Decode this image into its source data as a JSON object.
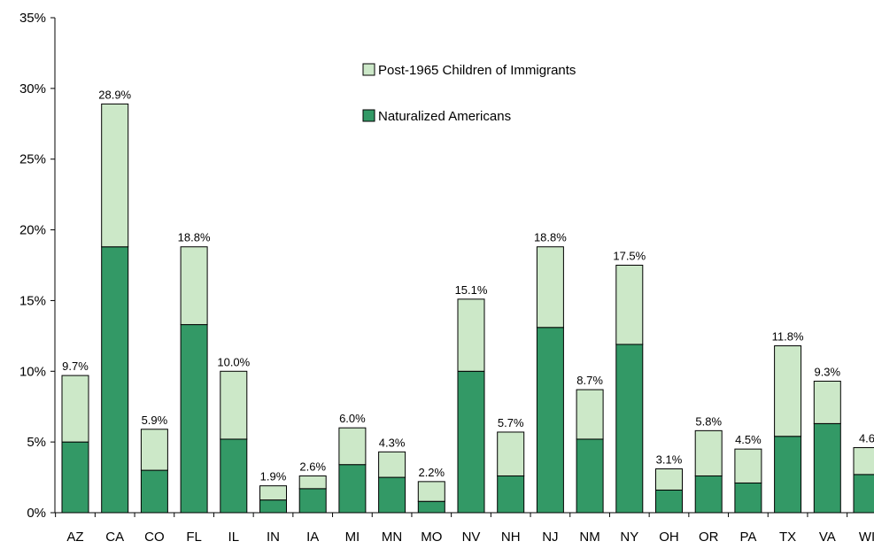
{
  "chart_data": {
    "type": "bar",
    "stacked": true,
    "categories": [
      "AZ",
      "CA",
      "CO",
      "FL",
      "IL",
      "IN",
      "IA",
      "MI",
      "MN",
      "MO",
      "NV",
      "NH",
      "NJ",
      "NM",
      "NY",
      "OH",
      "OR",
      "PA",
      "TX",
      "VA",
      "WI"
    ],
    "series": [
      {
        "name": "Naturalized Americans",
        "color": "#339966",
        "values": [
          5.0,
          18.8,
          3.0,
          13.3,
          5.2,
          0.9,
          1.7,
          3.4,
          2.5,
          0.8,
          10.0,
          2.6,
          13.1,
          5.2,
          11.9,
          1.6,
          2.6,
          2.1,
          5.4,
          6.3,
          2.7
        ]
      },
      {
        "name": "Post-1965 Children of Immigrants",
        "color": "#CCE8C8",
        "values": [
          4.7,
          10.1,
          2.9,
          5.5,
          4.8,
          1.0,
          0.9,
          2.6,
          1.8,
          1.4,
          5.1,
          3.1,
          5.7,
          3.5,
          5.6,
          1.5,
          3.2,
          2.4,
          6.4,
          3.0,
          1.9
        ]
      }
    ],
    "totals": [
      9.7,
      28.9,
      5.9,
      18.8,
      10.0,
      1.9,
      2.6,
      6.0,
      4.3,
      2.2,
      15.1,
      5.7,
      18.8,
      8.7,
      17.5,
      3.1,
      5.8,
      4.5,
      11.8,
      9.3,
      4.6
    ],
    "total_labels": [
      "9.7%",
      "28.9%",
      "5.9%",
      "18.8%",
      "10.0%",
      "1.9%",
      "2.6%",
      "6.0%",
      "4.3%",
      "2.2%",
      "15.1%",
      "5.7%",
      "18.8%",
      "8.7%",
      "17.5%",
      "3.1%",
      "5.8%",
      "4.5%",
      "11.8%",
      "9.3%",
      "4.6"
    ],
    "y_ticks": [
      "0%",
      "5%",
      "10%",
      "15%",
      "20%",
      "25%",
      "30%",
      "35%"
    ],
    "ylim": [
      0,
      35
    ],
    "legend_position": "top-center",
    "grid": false
  }
}
